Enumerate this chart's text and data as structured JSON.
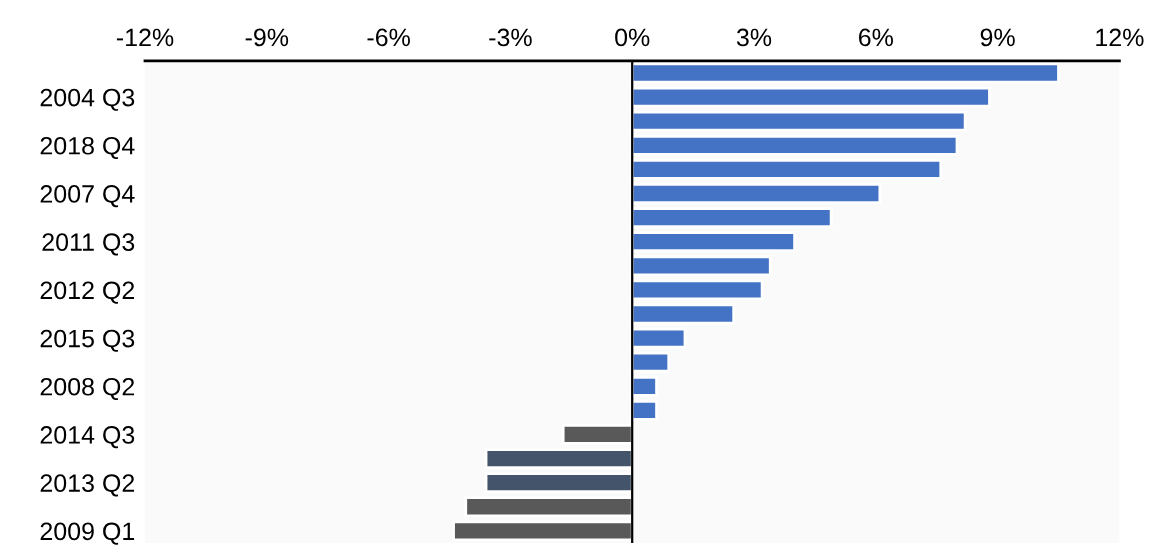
{
  "chart_data": {
    "type": "bar",
    "orientation": "horizontal",
    "categories": [
      null,
      "2004 Q3",
      null,
      "2018 Q4",
      null,
      "2007 Q4",
      null,
      "2011 Q3",
      null,
      "2012 Q2",
      null,
      "2015 Q3",
      null,
      "2008 Q2",
      null,
      "2014 Q3",
      null,
      "2013 Q2",
      null,
      "2009 Q1"
    ],
    "values": [
      10.5,
      8.8,
      8.2,
      8.0,
      7.6,
      6.1,
      4.9,
      4.0,
      3.4,
      3.2,
      2.5,
      1.3,
      0.9,
      0.6,
      0.6,
      -1.7,
      -3.6,
      -3.6,
      -4.1,
      -4.4
    ],
    "colors": [
      "#4472c4",
      "#4472c4",
      "#4472c4",
      "#4472c4",
      "#4472c4",
      "#4472c4",
      "#4472c4",
      "#4472c4",
      "#4472c4",
      "#4472c4",
      "#4472c4",
      "#4472c4",
      "#4472c4",
      "#4472c4",
      "#4472c4",
      "#595959",
      "#44546a",
      "#44546a",
      "#595959",
      "#595959"
    ],
    "xlim": [
      -12,
      12
    ],
    "xticks": [
      {
        "value": -12,
        "label": "-12%"
      },
      {
        "value": -9,
        "label": "-9%"
      },
      {
        "value": -6,
        "label": "-6%"
      },
      {
        "value": -3,
        "label": "-3%"
      },
      {
        "value": 0,
        "label": "0%"
      },
      {
        "value": 3,
        "label": "3%"
      },
      {
        "value": 6,
        "label": "6%"
      },
      {
        "value": 9,
        "label": "9%"
      },
      {
        "value": 12,
        "label": "12%"
      }
    ],
    "ref_lines": [
      {
        "axis": "x",
        "value": 0,
        "color": "#000000"
      }
    ]
  }
}
